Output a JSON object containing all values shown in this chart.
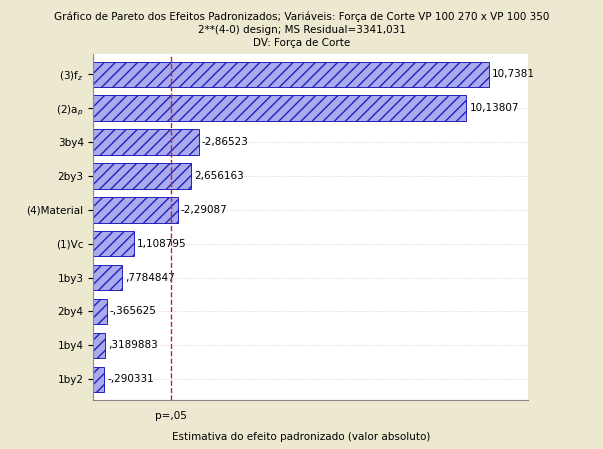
{
  "title_line1": "Gráfico de Pareto dos Efeitos Padronizados; Variáveis: Força de Corte VP 100 270 x VP 100 350",
  "title_line2": "2**(4-0) design; MS Residual=3341,031",
  "title_line3": "DV: Força de Corte",
  "xlabel": "Estimativa do efeito padronizado (valor absoluto)",
  "p_label": "p=,05",
  "categories": [
    "(3)f$_z$",
    "(2)a$_p$",
    "3by4",
    "2by3",
    "(4)Material",
    "(1)Vc",
    "1by3",
    "2by4",
    "1by4",
    "1by2"
  ],
  "values": [
    10.7381,
    10.13807,
    2.86523,
    2.656163,
    2.29087,
    1.108795,
    0.7784847,
    0.365625,
    0.3189883,
    0.290331
  ],
  "labels": [
    "10,7381",
    "10,13807",
    "-2,86523",
    "2,656163",
    "-2,29087",
    "1,108795",
    ",7784847",
    "-,365625",
    ",3189883",
    "-,290331"
  ],
  "p_value_line": 2.1,
  "bar_facecolor": "#aaaaee",
  "bar_edge_color": "#2222bb",
  "hatch": "///",
  "background_color": "#ede8d0",
  "plot_bg_color": "#ffffff",
  "grid_color": "#cccccc",
  "dashed_line_color": "#cc2222",
  "xlim": [
    0,
    11.8
  ],
  "title_fontsize": 7.5,
  "label_fontsize": 7.5,
  "tick_fontsize": 7.5,
  "value_fontsize": 7.5
}
